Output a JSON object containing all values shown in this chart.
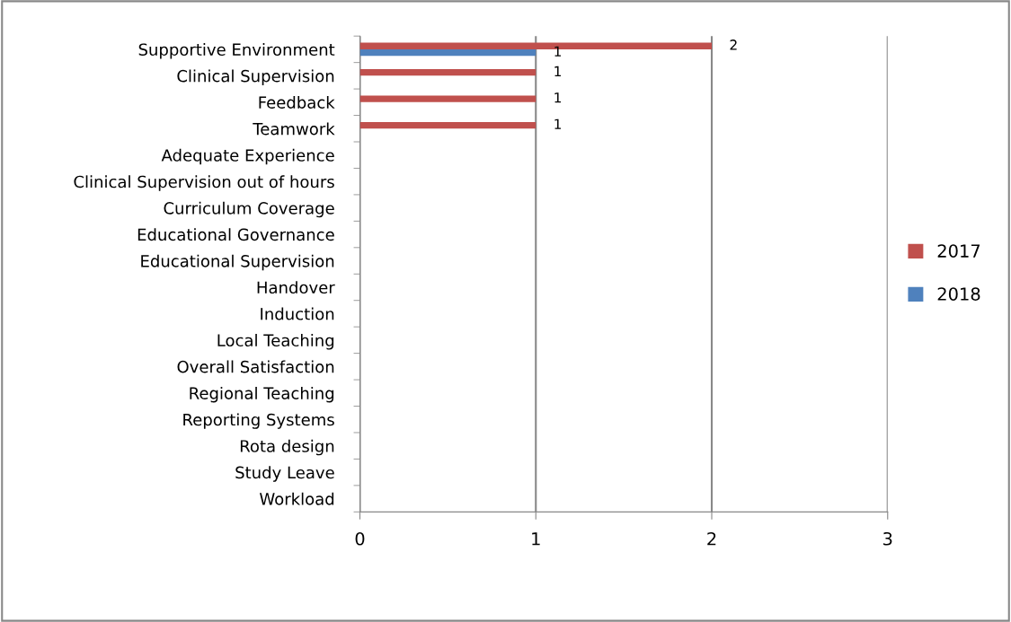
{
  "chart_data": {
    "type": "bar",
    "orientation": "horizontal",
    "categories": [
      "Supportive Environment",
      "Clinical Supervision",
      "Feedback",
      "Teamwork",
      "Adequate Experience",
      "Clinical Supervision out of hours",
      "Curriculum Coverage",
      "Educational Governance",
      "Educational Supervision",
      "Handover",
      "Induction",
      "Local Teaching",
      "Overall Satisfaction",
      "Regional Teaching",
      "Reporting Systems",
      "Rota design",
      "Study Leave",
      "Workload"
    ],
    "series": [
      {
        "name": "2017",
        "color": "#c0504d",
        "values": [
          2,
          1,
          1,
          1,
          null,
          null,
          null,
          null,
          null,
          null,
          null,
          null,
          null,
          null,
          null,
          null,
          null,
          null
        ],
        "value_labels": [
          "2",
          "1",
          "1",
          "1",
          null,
          null,
          null,
          null,
          null,
          null,
          null,
          null,
          null,
          null,
          null,
          null,
          null,
          null
        ]
      },
      {
        "name": "2018",
        "color": "#4f81bd",
        "values": [
          1,
          null,
          null,
          null,
          null,
          null,
          null,
          null,
          null,
          null,
          null,
          null,
          null,
          null,
          null,
          null,
          null,
          null
        ],
        "value_labels": [
          "1",
          null,
          null,
          null,
          null,
          null,
          null,
          null,
          null,
          null,
          null,
          null,
          null,
          null,
          null,
          null,
          null,
          null
        ]
      }
    ],
    "xlim": [
      0,
      3
    ],
    "xticks": [
      0,
      1,
      2,
      3
    ],
    "grid": "x",
    "legend": "right"
  }
}
